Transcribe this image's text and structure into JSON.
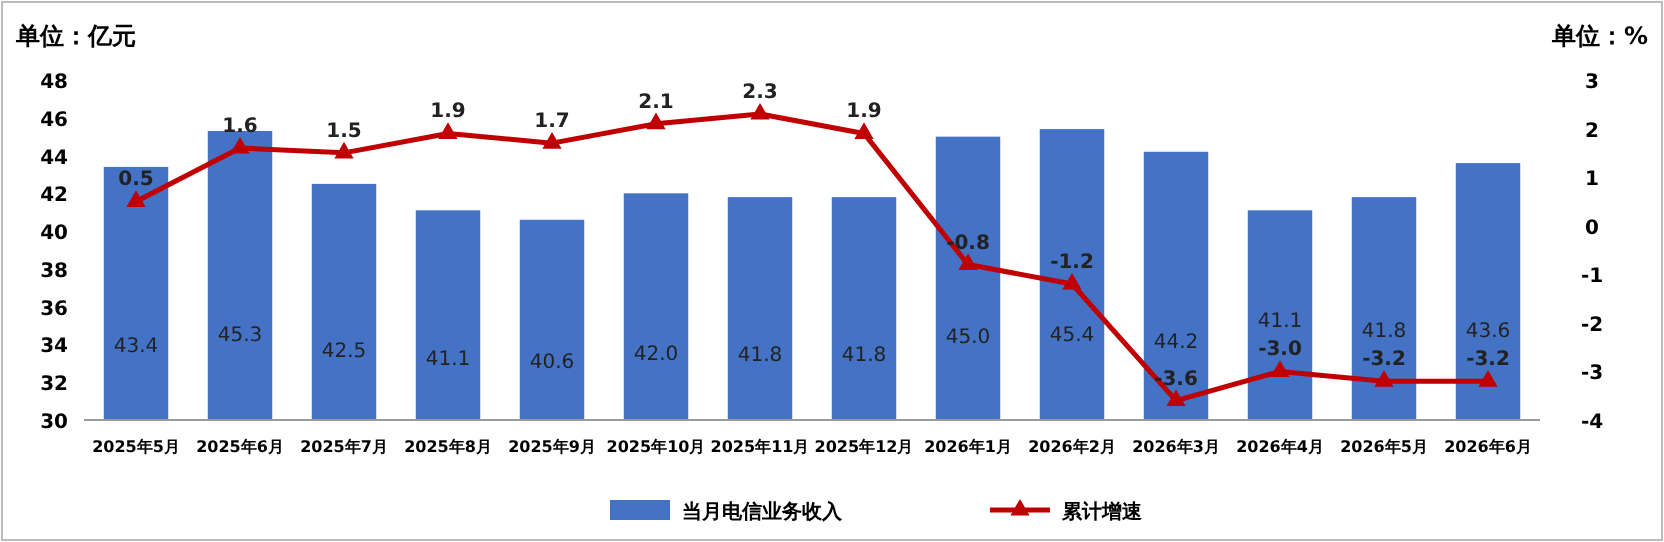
{
  "chart_data": {
    "type": "bar",
    "ylabel": "单位：亿元",
    "y2label": "单位：%",
    "categories": [
      "2025年5月",
      "2025年6月",
      "2025年7月",
      "2025年8月",
      "2025年9月",
      "2025年10月",
      "2025年11月",
      "2025年12月",
      "2026年1月",
      "2026年2月",
      "2026年3月",
      "2026年4月",
      "2026年5月",
      "2026年6月"
    ],
    "series": [
      {
        "name": "当月电信业务收入",
        "type": "bar",
        "color": "#4472c4",
        "values": [
          43.4,
          45.3,
          42.5,
          41.1,
          40.6,
          42.0,
          41.8,
          41.8,
          45.0,
          45.4,
          44.2,
          41.1,
          41.8,
          43.6
        ],
        "value_labels": [
          "43.4",
          "45.3",
          "42.5",
          "41.1",
          "40.6",
          "42.0",
          "41.8",
          "41.8",
          "45.0",
          "45.4",
          "44.2",
          "41.1",
          "41.8",
          "43.6"
        ]
      },
      {
        "name": "累计增速",
        "type": "line",
        "axis": "y2",
        "color": "#c00000",
        "marker": "triangle",
        "values": [
          0.5,
          1.6,
          1.5,
          1.9,
          1.7,
          2.1,
          2.3,
          1.9,
          -0.8,
          -1.2,
          -3.6,
          -3.0,
          -3.2,
          -3.2
        ],
        "value_labels": [
          "0.5",
          "1.6",
          "1.5",
          "1.9",
          "1.7",
          "2.1",
          "2.3",
          "1.9",
          "-0.8",
          "-1.2",
          "-3.6",
          "-3.0",
          "-3.2",
          "-3.2"
        ]
      }
    ],
    "ylim": [
      30,
      48
    ],
    "yticks": [
      30,
      32,
      34,
      36,
      38,
      40,
      42,
      44,
      46,
      48
    ],
    "y2lim": [
      -4,
      3
    ],
    "y2ticks": [
      -4,
      -3,
      -2,
      -1,
      0,
      1,
      2,
      3
    ],
    "grid": false,
    "legend": "bottom"
  }
}
